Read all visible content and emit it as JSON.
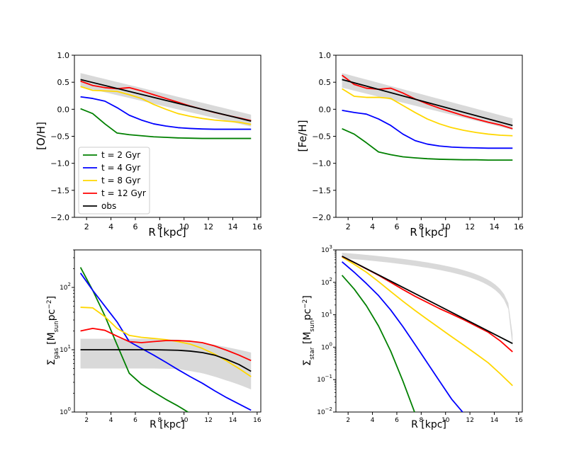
{
  "chart_data": [
    {
      "type": "line",
      "id": "oh",
      "xlabel": "R  [kpc]",
      "ylabel": "[O/H]",
      "xlim": [
        1.0,
        16.3
      ],
      "ylim": [
        -2.0,
        1.0
      ],
      "xticks": [
        2,
        4,
        6,
        8,
        10,
        12,
        14,
        16
      ],
      "yticks": [
        -2.0,
        -1.5,
        -1.0,
        -0.5,
        0.0,
        0.5,
        1.0
      ],
      "ytick_labels": [
        "−2.0",
        "−1.5",
        "−1.0",
        "−0.5",
        "0.0",
        "0.5",
        "1.0"
      ],
      "band": {
        "x": [
          1.5,
          15.5
        ],
        "lower": [
          0.42,
          -0.32
        ],
        "upper": [
          0.67,
          -0.1
        ]
      },
      "legend": [
        "t = 2 Gyr",
        "t = 4 Gyr",
        "t = 8 Gyr",
        "t = 12 Gyr",
        "obs"
      ],
      "series": [
        {
          "name": "t = 2 Gyr",
          "color": "#008000",
          "x": [
            1.5,
            2.5,
            3.5,
            4.5,
            5.5,
            6.5,
            7.5,
            8.5,
            9.5,
            10.5,
            11.5,
            12.5,
            13.5,
            14.5,
            15.5
          ],
          "values": [
            0.01,
            -0.08,
            -0.27,
            -0.44,
            -0.47,
            -0.49,
            -0.51,
            -0.52,
            -0.53,
            -0.535,
            -0.54,
            -0.54,
            -0.54,
            -0.54,
            -0.54
          ]
        },
        {
          "name": "t = 4 Gyr",
          "color": "#0000ff",
          "x": [
            1.5,
            2.5,
            3.5,
            4.5,
            5.5,
            6.5,
            7.5,
            8.5,
            9.5,
            10.5,
            11.5,
            12.5,
            13.5,
            14.5,
            15.5
          ],
          "values": [
            0.23,
            0.2,
            0.15,
            0.03,
            -0.11,
            -0.2,
            -0.27,
            -0.31,
            -0.34,
            -0.355,
            -0.365,
            -0.37,
            -0.37,
            -0.37,
            -0.37
          ]
        },
        {
          "name": "t = 8 Gyr",
          "color": "#ffd700",
          "x": [
            1.5,
            2.5,
            3.5,
            4.5,
            5.5,
            6.5,
            7.5,
            8.5,
            9.5,
            10.5,
            11.5,
            12.5,
            13.5,
            14.5,
            15.5
          ],
          "values": [
            0.42,
            0.35,
            0.34,
            0.33,
            0.27,
            0.2,
            0.09,
            0.0,
            -0.08,
            -0.13,
            -0.17,
            -0.2,
            -0.22,
            -0.24,
            -0.28
          ]
        },
        {
          "name": "t = 12 Gyr",
          "color": "#ff0000",
          "x": [
            1.5,
            2.5,
            3.5,
            4.5,
            5.5,
            6.5,
            7.5,
            8.5,
            9.5,
            10.5,
            11.5,
            12.5,
            13.5,
            14.5,
            15.5
          ],
          "values": [
            0.52,
            0.44,
            0.4,
            0.38,
            0.4,
            0.34,
            0.27,
            0.2,
            0.13,
            0.06,
            0.0,
            -0.06,
            -0.11,
            -0.16,
            -0.21
          ]
        },
        {
          "name": "obs",
          "color": "#000000",
          "x": [
            1.5,
            15.5
          ],
          "values": [
            0.55,
            -0.22
          ]
        }
      ]
    },
    {
      "type": "line",
      "id": "feh",
      "xlabel": "R  [kpc]",
      "ylabel": "[Fe/H]",
      "xlim": [
        1.0,
        16.3
      ],
      "ylim": [
        -2.0,
        1.0
      ],
      "xticks": [
        2,
        4,
        6,
        8,
        10,
        12,
        14,
        16
      ],
      "yticks": [
        -2.0,
        -1.5,
        -1.0,
        -0.5,
        0.0,
        0.5,
        1.0
      ],
      "ytick_labels": [
        "−2.0",
        "−1.5",
        "−1.0",
        "−0.5",
        "0.0",
        "0.5",
        "1.0"
      ],
      "band": {
        "x": [
          1.5,
          15.5
        ],
        "lower": [
          0.4,
          -0.38
        ],
        "upper": [
          0.67,
          -0.17
        ]
      },
      "series": [
        {
          "name": "t = 2 Gyr",
          "color": "#008000",
          "x": [
            1.5,
            2.5,
            3.5,
            4.5,
            5.5,
            6.5,
            7.5,
            8.5,
            9.5,
            10.5,
            11.5,
            12.5,
            13.5,
            14.5,
            15.5
          ],
          "values": [
            -0.36,
            -0.46,
            -0.62,
            -0.79,
            -0.84,
            -0.88,
            -0.9,
            -0.915,
            -0.925,
            -0.93,
            -0.935,
            -0.935,
            -0.94,
            -0.94,
            -0.94
          ]
        },
        {
          "name": "t = 4 Gyr",
          "color": "#0000ff",
          "x": [
            1.5,
            2.5,
            3.5,
            4.5,
            5.5,
            6.5,
            7.5,
            8.5,
            9.5,
            10.5,
            11.5,
            12.5,
            13.5,
            14.5,
            15.5
          ],
          "values": [
            -0.02,
            -0.06,
            -0.09,
            -0.18,
            -0.3,
            -0.46,
            -0.58,
            -0.645,
            -0.68,
            -0.7,
            -0.71,
            -0.715,
            -0.72,
            -0.72,
            -0.72
          ]
        },
        {
          "name": "t = 8 Gyr",
          "color": "#ffd700",
          "x": [
            1.5,
            2.5,
            3.5,
            4.5,
            5.5,
            6.5,
            7.5,
            8.5,
            9.5,
            10.5,
            11.5,
            12.5,
            13.5,
            14.5,
            15.5
          ],
          "values": [
            0.38,
            0.24,
            0.22,
            0.22,
            0.2,
            0.07,
            -0.06,
            -0.18,
            -0.27,
            -0.34,
            -0.39,
            -0.43,
            -0.46,
            -0.48,
            -0.49
          ]
        },
        {
          "name": "t = 12 Gyr",
          "color": "#ff0000",
          "x": [
            1.5,
            2.5,
            3.5,
            4.5,
            5.5,
            6.5,
            7.5,
            8.5,
            9.5,
            10.5,
            11.5,
            12.5,
            13.5,
            14.5,
            15.5
          ],
          "values": [
            0.63,
            0.46,
            0.39,
            0.37,
            0.39,
            0.3,
            0.19,
            0.1,
            0.02,
            -0.05,
            -0.12,
            -0.18,
            -0.24,
            -0.29,
            -0.36
          ]
        },
        {
          "name": "obs",
          "color": "#000000",
          "x": [
            1.5,
            15.5
          ],
          "values": [
            0.55,
            -0.3
          ]
        }
      ]
    },
    {
      "type": "line",
      "id": "gas",
      "yscale": "log",
      "xlabel": "R  [kpc]",
      "ylabel": "Σgas  [Msun pc−2]",
      "xlim": [
        1.0,
        16.3
      ],
      "ylim": [
        1,
        400
      ],
      "xticks": [
        2,
        4,
        6,
        8,
        10,
        12,
        14,
        16
      ],
      "ytick_exps": [
        0,
        1,
        2
      ],
      "band": {
        "x": [
          1.5,
          5.5,
          7.5,
          9.5,
          11.5,
          13.5,
          15.5
        ],
        "lower": [
          5,
          5,
          5,
          4.9,
          4.2,
          3.2,
          2.3
        ],
        "upper": [
          15,
          15,
          15,
          14.5,
          13,
          11,
          9
        ]
      },
      "series": [
        {
          "name": "t = 2 Gyr",
          "color": "#008000",
          "x": [
            1.5,
            2.5,
            3.5,
            4.5,
            5.5,
            6.5,
            7.5,
            8.5,
            9.5,
            10.5
          ],
          "values": [
            210,
            90,
            35,
            12,
            4.2,
            2.8,
            2.1,
            1.6,
            1.25,
            0.95
          ]
        },
        {
          "name": "t = 4 Gyr",
          "color": "#0000ff",
          "x": [
            1.5,
            2.5,
            3.5,
            4.5,
            5.5,
            6.5,
            7.5,
            8.5,
            9.5,
            10.5,
            11.5,
            12.5,
            13.5,
            14.5,
            15.5
          ],
          "values": [
            170,
            90,
            50,
            28,
            13.5,
            10.5,
            8.2,
            6.3,
            4.8,
            3.7,
            2.9,
            2.2,
            1.7,
            1.35,
            1.07
          ]
        },
        {
          "name": "t = 8 Gyr",
          "color": "#ffd700",
          "x": [
            1.5,
            2.5,
            3.5,
            4.5,
            5.5,
            6.5,
            7.5,
            8.5,
            9.5,
            10.5,
            11.5,
            12.5,
            13.5,
            14.5,
            15.5
          ],
          "values": [
            48,
            47,
            34,
            22,
            17,
            15.8,
            15.2,
            14.5,
            13.5,
            12.3,
            10.5,
            8.5,
            6.6,
            5,
            3.7
          ]
        },
        {
          "name": "t = 12 Gyr",
          "color": "#ff0000",
          "x": [
            1.5,
            2.5,
            3.5,
            4.5,
            5.5,
            6.5,
            7.5,
            8.5,
            9.5,
            10.5,
            11.5,
            12.5,
            13.5,
            14.5,
            15.5
          ],
          "values": [
            20,
            22,
            20.5,
            16.5,
            13.5,
            13,
            13.5,
            14,
            14,
            13.7,
            13,
            11.5,
            9.8,
            8.2,
            6.7
          ]
        },
        {
          "name": "obs",
          "color": "#000000",
          "x": [
            1.5,
            3.5,
            5.5,
            7.5,
            9.5,
            10.5,
            11.5,
            12.5,
            13.5,
            14.5,
            15.5
          ],
          "values": [
            10,
            10,
            10,
            10,
            9.8,
            9.5,
            9,
            8.2,
            7,
            5.8,
            4.5
          ]
        }
      ]
    },
    {
      "type": "line",
      "id": "star",
      "yscale": "log",
      "xlabel": "R  [kpc]",
      "ylabel": "Σstar  [Msun pc−2]",
      "xlim": [
        1.0,
        16.3
      ],
      "ylim": [
        0.01,
        1000
      ],
      "xticks": [
        2,
        4,
        6,
        8,
        10,
        12,
        14,
        16
      ],
      "ytick_exps": [
        -2,
        -1,
        0,
        1,
        2,
        3
      ],
      "band": {
        "x": [
          1.5,
          15.5
        ],
        "lower": [
          560,
          1
        ],
        "upper": [
          820,
          2.5
        ]
      },
      "series": [
        {
          "name": "t = 2 Gyr",
          "color": "#008000",
          "x": [
            1.5,
            2.5,
            3.5,
            4.5,
            5.5,
            6.5,
            7.5
          ],
          "values": [
            165,
            62,
            19,
            4.5,
            0.75,
            0.09,
            0.009
          ]
        },
        {
          "name": "t = 4 Gyr",
          "color": "#0000ff",
          "x": [
            1.5,
            2.5,
            3.5,
            4.5,
            5.5,
            6.5,
            7.5,
            8.5,
            9.5,
            10.5,
            11.5
          ],
          "values": [
            430,
            205,
            92,
            39,
            14,
            4.3,
            1.2,
            0.33,
            0.09,
            0.025,
            0.009
          ]
        },
        {
          "name": "t = 8 Gyr",
          "color": "#ffd700",
          "x": [
            1.5,
            2.5,
            3.5,
            4.5,
            5.5,
            6.5,
            7.5,
            8.5,
            9.5,
            10.5,
            11.5,
            12.5,
            13.5,
            14.5,
            15.5
          ],
          "values": [
            600,
            360,
            205,
            105,
            52,
            26,
            13.5,
            7.2,
            3.9,
            2.1,
            1.15,
            0.62,
            0.33,
            0.15,
            0.065
          ]
        },
        {
          "name": "t = 12 Gyr",
          "color": "#ff0000",
          "x": [
            1.5,
            2.5,
            3.5,
            4.5,
            5.5,
            6.5,
            7.5,
            8.5,
            9.5,
            10.5,
            11.5,
            12.5,
            13.5,
            14.5,
            15.5
          ],
          "values": [
            630,
            410,
            260,
            165,
            100,
            60,
            37,
            24,
            15.5,
            10.5,
            7,
            4.5,
            2.9,
            1.55,
            0.72
          ]
        },
        {
          "name": "obs",
          "color": "#000000",
          "x": [
            1.5,
            15.5
          ],
          "values": [
            640,
            1.3
          ]
        }
      ]
    }
  ]
}
